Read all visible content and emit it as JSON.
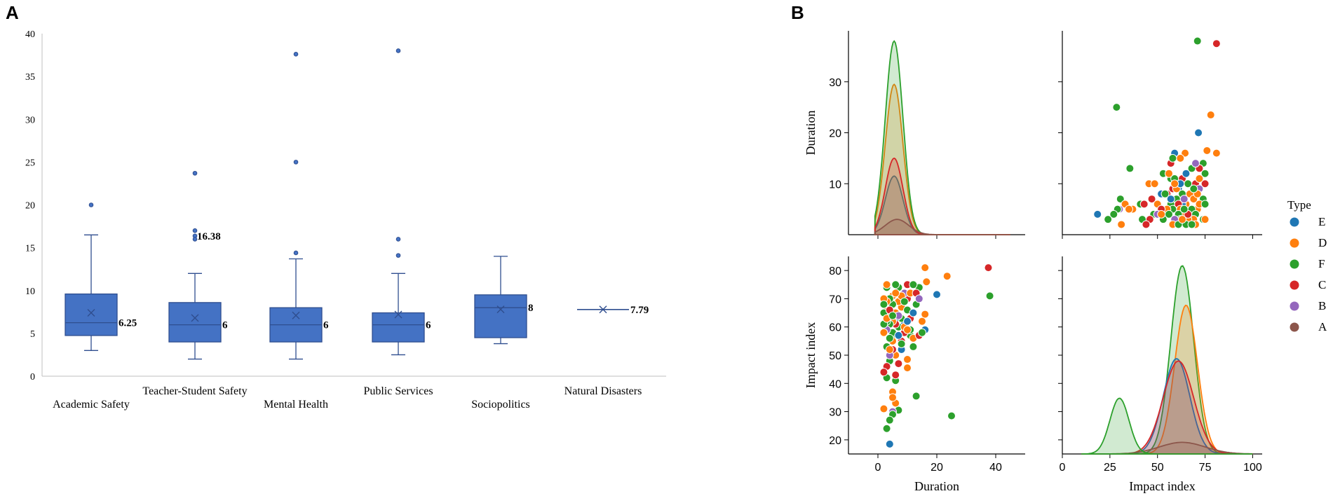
{
  "panels": {
    "a_label": "A",
    "b_label": "B"
  },
  "colors": {
    "box_fill": "#4472c4",
    "box_stroke": "#2f4e8f",
    "axis": "#bfbfbf",
    "E": "#1f77b4",
    "D": "#ff7f0e",
    "F": "#2ca02c",
    "C": "#d62728",
    "B": "#9467bd",
    "A": "#8c564b"
  },
  "chart_data": [
    {
      "type": "box",
      "title": "",
      "ylim": [
        0,
        40
      ],
      "yticks": [
        "0",
        "5",
        "10",
        "15",
        "20",
        "25",
        "30",
        "35",
        "40"
      ],
      "categories": [
        "Academic Safety",
        "Teacher-Student Safety",
        "Mental Health",
        "Public Services",
        "Sociopolitics",
        "Natural Disasters"
      ],
      "boxes": [
        {
          "name": "Academic Safety",
          "whisker_low": 3,
          "q1": 4.75,
          "median": 6.25,
          "q3": 9.6,
          "whisker_high": 16.5,
          "mean": 7.4,
          "outliers": [
            20
          ],
          "label": "6.25"
        },
        {
          "name": "Teacher-Student Safety",
          "whisker_low": 2,
          "q1": 4,
          "median": 6,
          "q3": 8.6,
          "whisker_high": 12,
          "mean": 6.8,
          "outliers": [
            23.7,
            17,
            16.38,
            16
          ],
          "label": "16.38",
          "label2": "6"
        },
        {
          "name": "Mental Health",
          "whisker_low": 2,
          "q1": 4,
          "median": 6,
          "q3": 8,
          "whisker_high": 13.7,
          "mean": 7.1,
          "outliers": [
            37.6,
            25,
            14.4
          ],
          "label": "6"
        },
        {
          "name": "Public Services",
          "whisker_low": 2.5,
          "q1": 4,
          "median": 6,
          "q3": 7.4,
          "whisker_high": 12,
          "mean": 7.2,
          "outliers": [
            38,
            16,
            14.1
          ],
          "label": "6"
        },
        {
          "name": "Sociopolitics",
          "whisker_low": 3.8,
          "q1": 4.5,
          "median": 8,
          "q3": 9.5,
          "whisker_high": 14,
          "mean": 7.8,
          "outliers": [],
          "label": "8"
        },
        {
          "name": "Natural Disasters",
          "whisker_low": 7.79,
          "q1": 7.79,
          "median": 7.79,
          "q3": 7.79,
          "whisker_high": 7.79,
          "mean": 7.79,
          "outliers": [],
          "label": "7.79"
        }
      ]
    },
    {
      "type": "pairplot",
      "variables": [
        "Duration",
        "Impact index"
      ],
      "xlabels": [
        "Duration",
        "Impact index"
      ],
      "ylabels": [
        "Duration",
        "Impact index"
      ],
      "duration_xlim": [
        -10,
        50
      ],
      "duration_xticks": [
        "0",
        "20",
        "40"
      ],
      "impact_xlim": [
        0,
        105
      ],
      "impact_xticks": [
        "0",
        "25",
        "50",
        "75",
        "100"
      ],
      "duration_ylim": [
        0,
        40
      ],
      "duration_yticks": [
        "10",
        "20",
        "30"
      ],
      "impact_ylim": [
        15,
        85
      ],
      "impact_yticks": [
        "20",
        "30",
        "40",
        "50",
        "60",
        "70",
        "80"
      ],
      "legend": {
        "title": "Type",
        "entries": [
          "E",
          "D",
          "F",
          "C",
          "B",
          "A"
        ]
      },
      "duration_kde": [
        {
          "type": "E",
          "peak": 11.5,
          "mean": 5.5,
          "sd": 3.0
        },
        {
          "type": "D",
          "peak": 29.5,
          "mean": 5.5,
          "sd": 3.0
        },
        {
          "type": "F",
          "peak": 38,
          "mean": 5.5,
          "sd": 3.0
        },
        {
          "type": "C",
          "peak": 15,
          "mean": 5.5,
          "sd": 3.0
        },
        {
          "type": "A",
          "peak": 3,
          "mean": 6.5,
          "sd": 4.0
        }
      ],
      "impact_kde": [
        {
          "type": "F",
          "peak": 81,
          "mean": 63,
          "sd": 6
        },
        {
          "type": "D",
          "peak": 64,
          "mean": 65,
          "sd": 6
        },
        {
          "type": "E",
          "peak": 41,
          "mean": 60,
          "sd": 7
        },
        {
          "type": "C",
          "peak": 40,
          "mean": 61,
          "sd": 8
        },
        {
          "type": "A",
          "peak": 5,
          "mean": 63,
          "sd": 12
        },
        {
          "type": "F2",
          "peak": 24,
          "mean": 30,
          "sd": 5
        }
      ],
      "points": [
        {
          "type": "F",
          "duration": 38,
          "impact": 71
        },
        {
          "type": "C",
          "duration": 37.5,
          "impact": 81
        },
        {
          "type": "F",
          "duration": 25,
          "impact": 28.5
        },
        {
          "type": "D",
          "duration": 23.5,
          "impact": 78
        },
        {
          "type": "E",
          "duration": 20,
          "impact": 71.5
        },
        {
          "type": "D",
          "duration": 16,
          "impact": 81
        },
        {
          "type": "D",
          "duration": 16.5,
          "impact": 76
        },
        {
          "type": "D",
          "duration": 16,
          "impact": 64.5
        },
        {
          "type": "E",
          "duration": 16,
          "impact": 59
        },
        {
          "type": "F",
          "duration": 14,
          "impact": 74
        },
        {
          "type": "F",
          "duration": 13,
          "impact": 35.5
        },
        {
          "type": "F",
          "duration": 12,
          "impact": 53
        },
        {
          "type": "F",
          "duration": 11,
          "impact": 57
        },
        {
          "type": "C",
          "duration": 10,
          "impact": 70
        },
        {
          "type": "D",
          "duration": 10,
          "impact": 45.5
        },
        {
          "type": "D",
          "duration": 10,
          "impact": 48.5
        },
        {
          "type": "C",
          "duration": 9,
          "impact": 58
        },
        {
          "type": "B",
          "duration": 9,
          "impact": 72
        },
        {
          "type": "E",
          "duration": 9,
          "impact": 61
        },
        {
          "type": "F",
          "duration": 8,
          "impact": 63
        },
        {
          "type": "D",
          "duration": 8,
          "impact": 67
        },
        {
          "type": "C",
          "duration": 8,
          "impact": 55
        },
        {
          "type": "E",
          "duration": 8,
          "impact": 52
        },
        {
          "type": "F",
          "duration": 7,
          "impact": 60
        },
        {
          "type": "D",
          "duration": 7,
          "impact": 69
        },
        {
          "type": "F",
          "duration": 7,
          "impact": 74
        },
        {
          "type": "C",
          "duration": 7,
          "impact": 47
        },
        {
          "type": "F",
          "duration": 7,
          "impact": 30.5
        },
        {
          "type": "D",
          "duration": 6,
          "impact": 65
        },
        {
          "type": "F",
          "duration": 6,
          "impact": 57
        },
        {
          "type": "E",
          "duration": 6,
          "impact": 63
        },
        {
          "type": "C",
          "duration": 6,
          "impact": 61
        },
        {
          "type": "D",
          "duration": 6,
          "impact": 50
        },
        {
          "type": "D",
          "duration": 6,
          "impact": 33
        },
        {
          "type": "F",
          "duration": 6,
          "impact": 41
        },
        {
          "type": "D",
          "duration": 5,
          "impact": 71
        },
        {
          "type": "F",
          "duration": 5,
          "impact": 68
        },
        {
          "type": "D",
          "duration": 5,
          "impact": 62
        },
        {
          "type": "F",
          "duration": 5,
          "impact": 58
        },
        {
          "type": "D",
          "duration": 5,
          "impact": 55
        },
        {
          "type": "C",
          "duration": 5,
          "impact": 52
        },
        {
          "type": "B",
          "duration": 5,
          "impact": 30
        },
        {
          "type": "F",
          "duration": 5,
          "impact": 29
        },
        {
          "type": "D",
          "duration": 5,
          "impact": 37
        },
        {
          "type": "D",
          "duration": 5,
          "impact": 35
        },
        {
          "type": "F",
          "duration": 4,
          "impact": 70
        },
        {
          "type": "D",
          "duration": 4,
          "impact": 64
        },
        {
          "type": "F",
          "duration": 4,
          "impact": 61
        },
        {
          "type": "F",
          "duration": 4,
          "impact": 56
        },
        {
          "type": "F",
          "duration": 4,
          "impact": 48
        },
        {
          "type": "B",
          "duration": 4,
          "impact": 50
        },
        {
          "type": "F",
          "duration": 4,
          "impact": 27
        },
        {
          "type": "E",
          "duration": 4,
          "impact": 18.5
        },
        {
          "type": "F",
          "duration": 3,
          "impact": 74
        },
        {
          "type": "D",
          "duration": 3,
          "impact": 69
        },
        {
          "type": "D",
          "duration": 3,
          "impact": 66
        },
        {
          "type": "F",
          "duration": 3,
          "impact": 62
        },
        {
          "type": "B",
          "duration": 3,
          "impact": 59
        },
        {
          "type": "F",
          "duration": 3,
          "impact": 53
        },
        {
          "type": "C",
          "duration": 3,
          "impact": 46
        },
        {
          "type": "F",
          "duration": 3,
          "impact": 42
        },
        {
          "type": "F",
          "duration": 3,
          "impact": 24
        },
        {
          "type": "D",
          "duration": 2,
          "impact": 70
        },
        {
          "type": "F",
          "duration": 2,
          "impact": 65
        },
        {
          "type": "D",
          "duration": 2,
          "impact": 58
        },
        {
          "type": "C",
          "duration": 2,
          "impact": 44
        },
        {
          "type": "D",
          "duration": 2,
          "impact": 31
        },
        {
          "type": "F",
          "duration": 2,
          "impact": 61
        },
        {
          "type": "D",
          "duration": 3,
          "impact": 75
        },
        {
          "type": "C",
          "duration": 10,
          "impact": 75
        },
        {
          "type": "F",
          "duration": 12,
          "impact": 75
        },
        {
          "type": "D",
          "duration": 8,
          "impact": 71
        },
        {
          "type": "F",
          "duration": 10,
          "impact": 66
        },
        {
          "type": "C",
          "duration": 11,
          "impact": 63
        },
        {
          "type": "E",
          "duration": 12,
          "impact": 65
        },
        {
          "type": "D",
          "duration": 6,
          "impact": 72
        },
        {
          "type": "F",
          "duration": 9,
          "impact": 69
        },
        {
          "type": "B",
          "duration": 7,
          "impact": 64
        },
        {
          "type": "C",
          "duration": 4,
          "impact": 66
        },
        {
          "type": "D",
          "duration": 9,
          "impact": 60
        },
        {
          "type": "F",
          "duration": 11,
          "impact": 59
        },
        {
          "type": "E",
          "duration": 7,
          "impact": 57
        },
        {
          "type": "D",
          "duration": 12,
          "impact": 56
        },
        {
          "type": "C",
          "duration": 6,
          "impact": 43
        },
        {
          "type": "F",
          "duration": 8,
          "impact": 54
        },
        {
          "type": "D",
          "duration": 4,
          "impact": 52
        },
        {
          "type": "F",
          "duration": 13,
          "impact": 68
        },
        {
          "type": "C",
          "duration": 14,
          "impact": 57
        },
        {
          "type": "D",
          "duration": 15,
          "impact": 62
        },
        {
          "type": "E",
          "duration": 10,
          "impact": 62
        },
        {
          "type": "F",
          "duration": 6,
          "impact": 75
        },
        {
          "type": "D",
          "duration": 11,
          "impact": 72
        },
        {
          "type": "C",
          "duration": 13,
          "impact": 72
        },
        {
          "type": "F",
          "duration": 15,
          "impact": 58
        },
        {
          "type": "B",
          "duration": 14,
          "impact": 70
        },
        {
          "type": "D",
          "duration": 3,
          "impact": 63
        },
        {
          "type": "F",
          "duration": 2,
          "impact": 68
        },
        {
          "type": "F",
          "duration": 5,
          "impact": 64
        },
        {
          "type": "D",
          "duration": 10,
          "impact": 59
        }
      ]
    }
  ]
}
